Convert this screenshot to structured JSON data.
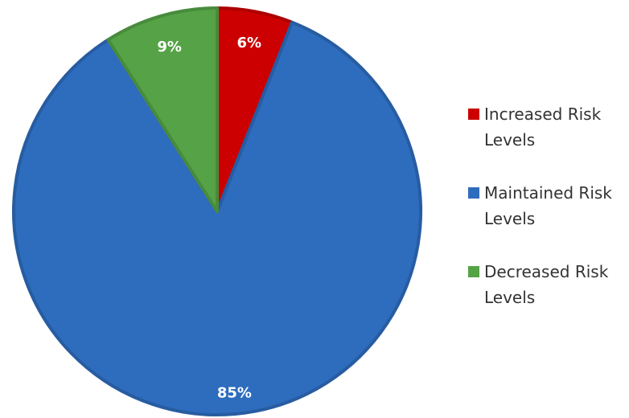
{
  "chart_data": {
    "type": "pie",
    "title": "",
    "slices": [
      {
        "label": "Increased Risk Levels",
        "value": 6,
        "display": "6%",
        "color": "#cc0000"
      },
      {
        "label": "Maintained Risk Levels",
        "value": 85,
        "display": "85%",
        "color": "#2e6cbd"
      },
      {
        "label": "Decreased Risk Levels",
        "value": 9,
        "display": "9%",
        "color": "#55a346"
      }
    ],
    "legend_position": "right",
    "start_angle": "12 o'clock",
    "direction": "clockwise"
  }
}
